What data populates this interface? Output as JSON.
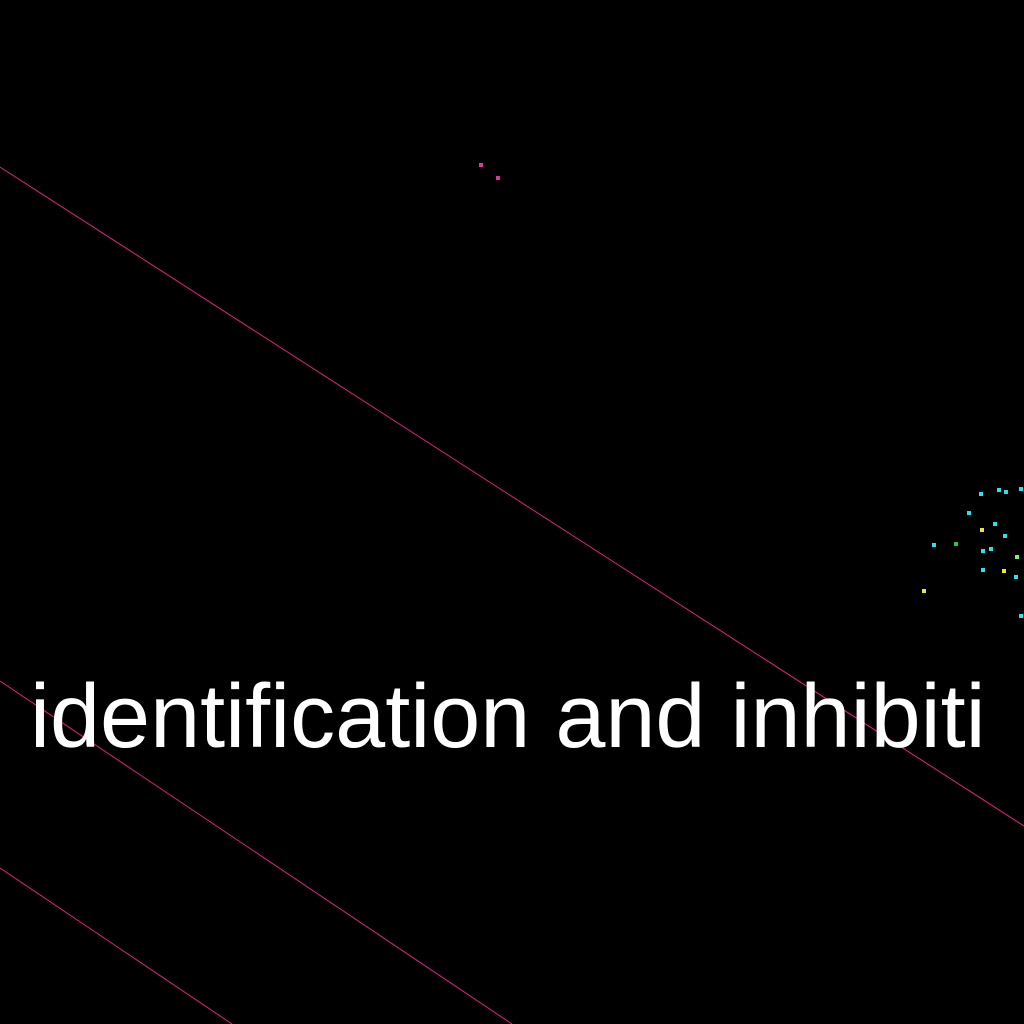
{
  "caption": "identification and inhibiti",
  "colors": {
    "background": "#000000",
    "line": "#e0207f",
    "caption": "#ffffff"
  },
  "dot_colors": [
    "#e2359a",
    "#e2359a",
    "#2de0ea",
    "#2de0ea",
    "#2de0ea",
    "#2de0ea",
    "#2de0ea",
    "#e8e832",
    "#2de0ea",
    "#2de0ea",
    "#2de0ea",
    "#1ecf3c",
    "#2de0ea",
    "#2de0ea",
    "#7df07a",
    "#2de0ea",
    "#e8e832",
    "#2de0ea",
    "#e8e832",
    "#2de0ea"
  ]
}
